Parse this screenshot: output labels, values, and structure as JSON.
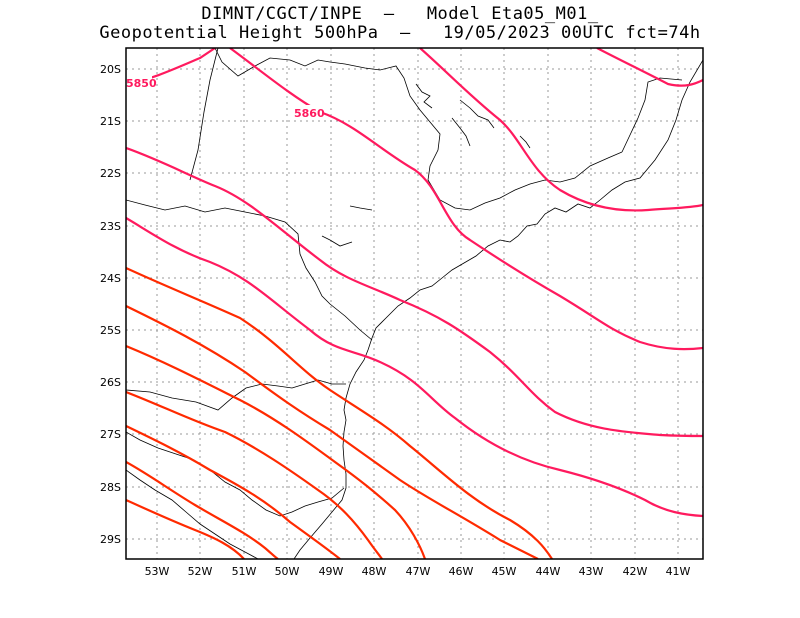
{
  "title_line1": "DIMNT/CGCT/INPE  –   Model Eta05_M01_",
  "title_line2": "Geopotential Height 500hPa  –   19/05/2023 00UTC fct=74h",
  "lat_labels": [
    "20S",
    "21S",
    "22S",
    "23S",
    "24S",
    "25S",
    "26S",
    "27S",
    "28S",
    "29S"
  ],
  "lon_labels": [
    "53W",
    "52W",
    "51W",
    "50W",
    "49W",
    "48W",
    "47W",
    "46W",
    "45W",
    "44W",
    "43W",
    "42W",
    "41W"
  ],
  "contour_labels": [
    "5850",
    "5860"
  ],
  "colors": {
    "magenta": "#ff1a5e",
    "red": "#ff2a00",
    "coast": "#000000",
    "grid": "#999999"
  }
}
